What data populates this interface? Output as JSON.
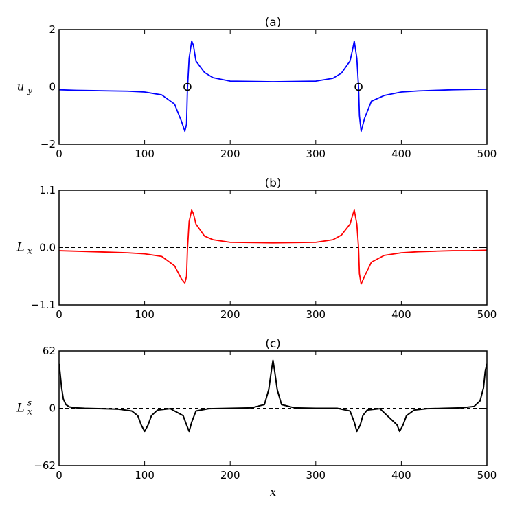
{
  "chart_data": [
    {
      "type": "line",
      "title": "(a)",
      "ylabel": {
        "base": "u",
        "sub": "y",
        "sup": ""
      },
      "xlabel": "",
      "xlim": [
        0,
        500
      ],
      "ylim": [
        -2,
        2
      ],
      "xticks": [
        0,
        100,
        200,
        300,
        400,
        500
      ],
      "yticks": [
        -2,
        0,
        2
      ],
      "ytick_labels": [
        "−2",
        "0",
        "2"
      ],
      "grid": false,
      "zero_line": true,
      "series": [
        {
          "color": "#0000ff",
          "x": [
            0,
            20,
            40,
            60,
            80,
            100,
            120,
            135,
            143,
            147,
            149,
            150,
            152,
            155,
            157,
            160,
            170,
            180,
            200,
            250,
            300,
            320,
            330,
            340,
            343,
            345,
            348,
            350,
            351,
            353,
            357,
            365,
            380,
            400,
            420,
            440,
            460,
            480,
            500
          ],
          "y": [
            -0.1,
            -0.12,
            -0.13,
            -0.14,
            -0.15,
            -0.18,
            -0.28,
            -0.6,
            -1.2,
            -1.55,
            -1.3,
            -0.1,
            1.0,
            1.6,
            1.45,
            0.9,
            0.5,
            0.32,
            0.2,
            0.18,
            0.2,
            0.3,
            0.48,
            0.9,
            1.3,
            1.6,
            1.0,
            0.0,
            -1.0,
            -1.55,
            -1.1,
            -0.5,
            -0.3,
            -0.18,
            -0.14,
            -0.12,
            -0.1,
            -0.09,
            -0.08
          ]
        }
      ],
      "markers": [
        {
          "x": 150,
          "y": 0
        },
        {
          "x": 350,
          "y": 0
        }
      ]
    },
    {
      "type": "line",
      "title": "(b)",
      "ylabel": {
        "base": "L",
        "sub": "x",
        "sup": ""
      },
      "xlabel": "",
      "xlim": [
        0,
        500
      ],
      "ylim": [
        -1.1,
        1.1
      ],
      "xticks": [
        0,
        100,
        200,
        300,
        400,
        500
      ],
      "yticks": [
        -1.1,
        0.0,
        1.1
      ],
      "ytick_labels": [
        "−1.1",
        "0.0",
        "1.1"
      ],
      "grid": false,
      "zero_line": true,
      "series": [
        {
          "color": "#ff0000",
          "x": [
            0,
            20,
            40,
            60,
            80,
            100,
            120,
            135,
            143,
            147,
            149,
            150,
            152,
            155,
            157,
            160,
            170,
            180,
            200,
            250,
            300,
            320,
            330,
            340,
            343,
            345,
            348,
            350,
            351,
            353,
            357,
            365,
            380,
            400,
            420,
            440,
            460,
            480,
            500
          ],
          "y": [
            -0.06,
            -0.07,
            -0.08,
            -0.09,
            -0.1,
            -0.12,
            -0.17,
            -0.35,
            -0.6,
            -0.68,
            -0.55,
            -0.05,
            0.5,
            0.72,
            0.65,
            0.45,
            0.22,
            0.15,
            0.1,
            0.09,
            0.1,
            0.15,
            0.24,
            0.45,
            0.62,
            0.72,
            0.45,
            0.0,
            -0.5,
            -0.7,
            -0.55,
            -0.28,
            -0.15,
            -0.1,
            -0.08,
            -0.07,
            -0.06,
            -0.06,
            -0.05
          ]
        }
      ]
    },
    {
      "type": "line",
      "title": "(c)",
      "ylabel": {
        "base": "L",
        "sub": "x",
        "sup": "s"
      },
      "xlabel": "x",
      "xlim": [
        0,
        500
      ],
      "ylim": [
        -62,
        62
      ],
      "xticks": [
        0,
        100,
        200,
        300,
        400,
        500
      ],
      "yticks": [
        -62,
        0,
        62
      ],
      "ytick_labels": [
        "−62",
        "0",
        "62"
      ],
      "grid": false,
      "zero_line": true,
      "series": [
        {
          "color": "#000000",
          "x": [
            0,
            1,
            3,
            5,
            8,
            12,
            20,
            30,
            50,
            70,
            85,
            92,
            96,
            100,
            104,
            108,
            115,
            130,
            145,
            149,
            152,
            155,
            160,
            175,
            200,
            225,
            240,
            245,
            248,
            250,
            252,
            255,
            260,
            275,
            300,
            325,
            340,
            345,
            348,
            352,
            355,
            360,
            375,
            395,
            398,
            402,
            406,
            415,
            430,
            450,
            470,
            485,
            492,
            496,
            498,
            500
          ],
          "y": [
            48,
            40,
            22,
            10,
            4,
            1.5,
            0.5,
            0,
            -0.5,
            -1,
            -3,
            -8,
            -18,
            -25,
            -18,
            -8,
            -2,
            -0.5,
            -8,
            -18,
            -25,
            -15,
            -3,
            -0.5,
            0,
            0.5,
            4,
            20,
            40,
            52,
            40,
            20,
            4,
            0.5,
            0,
            0,
            -3,
            -15,
            -25,
            -18,
            -8,
            -2,
            -0.5,
            -18,
            -25,
            -18,
            -8,
            -2,
            -0.5,
            0,
            0.5,
            2,
            8,
            22,
            40,
            48
          ]
        }
      ]
    }
  ]
}
